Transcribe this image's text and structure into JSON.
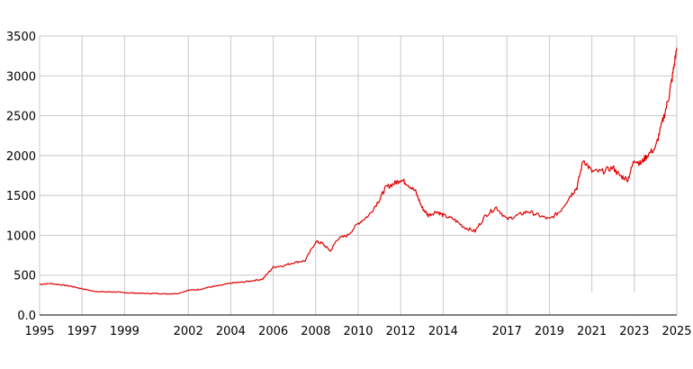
{
  "chart_data": {
    "type": "line",
    "title": "",
    "xlabel": "",
    "ylabel": "",
    "xlim": [
      1995,
      2025
    ],
    "ylim": [
      0,
      3500
    ],
    "grid": true,
    "legend": "none",
    "x_ticks": [
      1995,
      1997,
      1999,
      2002,
      2004,
      2006,
      2008,
      2010,
      2012,
      2014,
      2017,
      2019,
      2021,
      2023,
      2025
    ],
    "x_tick_labels": [
      "1995",
      "1997",
      "1999",
      "2002",
      "2004",
      "2006",
      "2008",
      "2010",
      "2012",
      "2014",
      "2017",
      "2019",
      "2021",
      "2023",
      "2025"
    ],
    "y_ticks": [
      0,
      500,
      1000,
      1500,
      2000,
      2500,
      3000,
      3500
    ],
    "y_tick_labels": [
      "0.0",
      "500",
      "1000",
      "1500",
      "2000",
      "2500",
      "3000",
      "3500"
    ],
    "series": [
      {
        "color": "#e00000",
        "x": [
          1995.0,
          1995.5,
          1996.0,
          1996.5,
          1997.0,
          1997.5,
          1998.0,
          1998.5,
          1999.0,
          1999.5,
          2000.0,
          2000.5,
          2001.0,
          2001.5,
          2002.0,
          2002.5,
          2003.0,
          2003.5,
          2004.0,
          2004.5,
          2005.0,
          2005.5,
          2006.0,
          2006.5,
          2007.0,
          2007.5,
          2008.0,
          2008.3,
          2008.7,
          2009.0,
          2009.5,
          2010.0,
          2010.5,
          2011.0,
          2011.3,
          2011.7,
          2012.0,
          2012.3,
          2012.7,
          2013.0,
          2013.3,
          2013.7,
          2014.0,
          2014.5,
          2015.0,
          2015.5,
          2016.0,
          2016.5,
          2017.0,
          2017.5,
          2018.0,
          2018.5,
          2019.0,
          2019.5,
          2020.0,
          2020.3,
          2020.6,
          2021.0,
          2021.5,
          2022.0,
          2022.3,
          2022.7,
          2023.0,
          2023.3,
          2023.6,
          2024.0,
          2024.3,
          2024.6,
          2024.8,
          2025.0
        ],
        "y": [
          385,
          395,
          380,
          360,
          330,
          300,
          290,
          290,
          280,
          275,
          270,
          270,
          265,
          270,
          310,
          320,
          350,
          370,
          400,
          410,
          430,
          450,
          600,
          620,
          660,
          680,
          920,
          900,
          800,
          950,
          1000,
          1150,
          1250,
          1450,
          1600,
          1650,
          1700,
          1650,
          1550,
          1350,
          1250,
          1300,
          1250,
          1200,
          1100,
          1050,
          1250,
          1350,
          1200,
          1250,
          1300,
          1250,
          1200,
          1300,
          1500,
          1600,
          1950,
          1800,
          1800,
          1850,
          1750,
          1700,
          1950,
          1900,
          2000,
          2100,
          2400,
          2700,
          3000,
          3350
        ]
      }
    ]
  }
}
